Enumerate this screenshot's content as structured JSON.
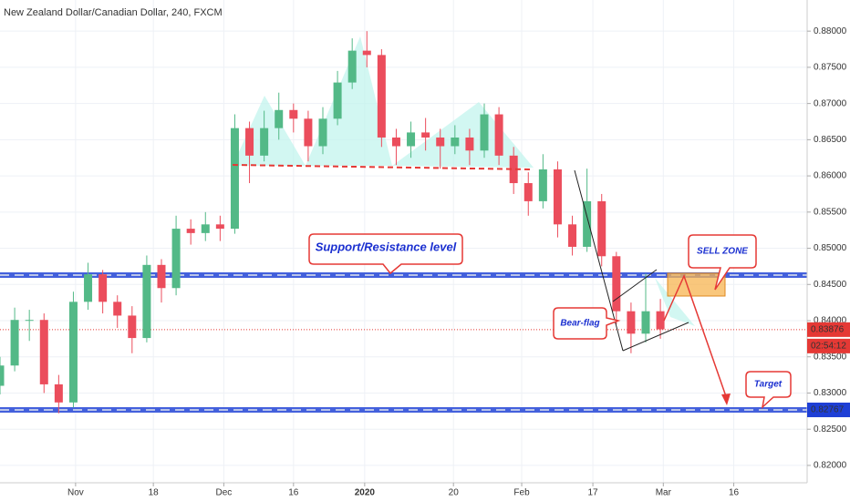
{
  "chart_data": {
    "type": "candlestick",
    "title": "New Zealand Dollar/Canadian Dollar, 240, FXCM",
    "x": [
      0,
      2,
      4,
      6,
      8,
      10,
      12,
      14,
      16,
      18,
      20,
      22,
      24,
      26,
      28,
      30,
      32,
      34,
      36,
      38,
      40,
      42,
      44,
      46,
      48,
      50,
      52,
      54,
      56,
      58,
      60,
      62,
      64,
      66,
      68,
      70,
      72,
      74,
      76,
      78,
      80,
      82,
      84,
      86,
      88,
      90
    ],
    "open": [
      0.831,
      0.8338,
      0.8401,
      0.8401,
      0.8312,
      0.8287,
      0.8426,
      0.8464,
      0.8426,
      0.8407,
      0.8376,
      0.8477,
      0.8445,
      0.8527,
      0.8521,
      0.8533,
      0.8527,
      0.8666,
      0.8628,
      0.8666,
      0.8691,
      0.8679,
      0.8641,
      0.8679,
      0.8729,
      0.8773,
      0.8767,
      0.8653,
      0.8641,
      0.866,
      0.8653,
      0.8641,
      0.8653,
      0.8635,
      0.8685,
      0.8628,
      0.859,
      0.8565,
      0.8609,
      0.8533,
      0.8502,
      0.8565,
      0.8489,
      0.8413,
      0.8382,
      0.8413
    ],
    "high": [
      0.835,
      0.8418,
      0.8415,
      0.841,
      0.8325,
      0.844,
      0.848,
      0.847,
      0.8435,
      0.842,
      0.849,
      0.8485,
      0.8545,
      0.854,
      0.855,
      0.8545,
      0.8685,
      0.8675,
      0.869,
      0.8715,
      0.87,
      0.869,
      0.8695,
      0.8745,
      0.879,
      0.88,
      0.8775,
      0.8665,
      0.8675,
      0.868,
      0.8665,
      0.867,
      0.8665,
      0.87,
      0.8695,
      0.864,
      0.8605,
      0.863,
      0.862,
      0.8545,
      0.861,
      0.8575,
      0.8495,
      0.8425,
      0.8465,
      0.843
    ],
    "low": [
      0.8298,
      0.833,
      0.8372,
      0.83,
      0.8272,
      0.828,
      0.8415,
      0.841,
      0.839,
      0.8355,
      0.837,
      0.8425,
      0.8435,
      0.8505,
      0.851,
      0.851,
      0.852,
      0.859,
      0.862,
      0.865,
      0.866,
      0.862,
      0.863,
      0.867,
      0.872,
      0.875,
      0.864,
      0.8615,
      0.8625,
      0.8635,
      0.861,
      0.863,
      0.8615,
      0.8625,
      0.8615,
      0.8575,
      0.8545,
      0.8555,
      0.8515,
      0.849,
      0.8495,
      0.8475,
      0.8395,
      0.8355,
      0.837,
      0.8375
    ],
    "close": [
      0.8338,
      0.8401,
      0.8401,
      0.8312,
      0.8287,
      0.8426,
      0.8464,
      0.8426,
      0.8407,
      0.8376,
      0.8477,
      0.8445,
      0.8527,
      0.8521,
      0.8533,
      0.8527,
      0.8666,
      0.8628,
      0.8666,
      0.8691,
      0.8679,
      0.8641,
      0.8679,
      0.8729,
      0.8773,
      0.8767,
      0.8653,
      0.8641,
      0.866,
      0.8653,
      0.8641,
      0.8653,
      0.8635,
      0.8685,
      0.8628,
      0.859,
      0.8565,
      0.8609,
      0.8533,
      0.8502,
      0.8565,
      0.8489,
      0.8413,
      0.8382,
      0.8413,
      0.8388
    ],
    "up_color": "#53b987",
    "down_color": "#eb4d5c",
    "xlim": [
      0,
      110
    ],
    "xticks": [
      {
        "value": 10.3,
        "label": "Nov"
      },
      {
        "value": 20.9,
        "label": "18"
      },
      {
        "value": 30.5,
        "label": "Dec"
      },
      {
        "value": 40,
        "label": "16"
      },
      {
        "value": 49.7,
        "label": "2020"
      },
      {
        "value": 61.8,
        "label": "20"
      },
      {
        "value": 71.1,
        "label": "Feb"
      },
      {
        "value": 80.8,
        "label": "17"
      },
      {
        "value": 90.4,
        "label": "Mar"
      },
      {
        "value": 100,
        "label": "16"
      }
    ],
    "ylim": [
      0.8176,
      0.8843
    ],
    "yticks": [
      {
        "value": 0.82,
        "label": "0.82000"
      },
      {
        "value": 0.825,
        "label": "0.82500"
      },
      {
        "value": 0.83,
        "label": "0.83000"
      },
      {
        "value": 0.835,
        "label": "0.83500"
      },
      {
        "value": 0.84,
        "label": "0.84000"
      },
      {
        "value": 0.845,
        "label": "0.84500"
      },
      {
        "value": 0.85,
        "label": "0.85000"
      },
      {
        "value": 0.855,
        "label": "0.85500"
      },
      {
        "value": 0.86,
        "label": "0.86000"
      },
      {
        "value": 0.865,
        "label": "0.86500"
      },
      {
        "value": 0.87,
        "label": "0.87000"
      },
      {
        "value": 0.875,
        "label": "0.87500"
      },
      {
        "value": 0.88,
        "label": "0.88000"
      }
    ],
    "grid": true,
    "support_level": 0.8463,
    "target_level": 0.82767,
    "last_price": 0.83876,
    "countdown": "02:54:12",
    "annotations": {
      "support_resistance": "Support/Resistance level",
      "sell_zone": "SELL ZONE",
      "bear_flag": "Bear-flag",
      "target": "Target"
    }
  }
}
